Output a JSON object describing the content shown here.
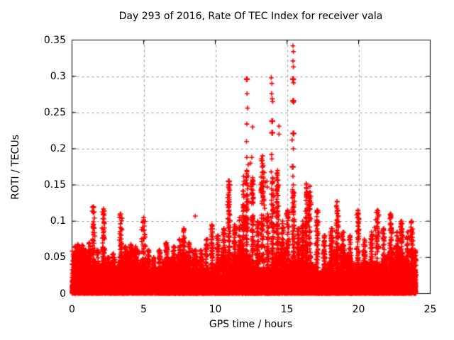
{
  "chart_data": {
    "type": "scatter",
    "title": "Day 293 of 2016, Rate Of TEC Index for receiver vala",
    "xlabel": "GPS time / hours",
    "ylabel": "ROTI / TECUs",
    "xlim": [
      0,
      25
    ],
    "ylim": [
      0,
      0.35
    ],
    "xticks": [
      0,
      5,
      10,
      15,
      20,
      25
    ],
    "yticks": [
      0,
      0.05,
      0.1,
      0.15,
      0.2,
      0.25,
      0.3,
      0.35
    ],
    "ytick_labels": [
      "0",
      "0.05",
      "0.1",
      "0.15",
      "0.2",
      "0.25",
      "0.3",
      "0.35"
    ],
    "grid": true,
    "legend": "none",
    "marker": "plus",
    "colors": {
      "points": "#ff0000",
      "grid": "#8f8f8f",
      "border": "#000000",
      "background": "#ffffff",
      "text": "#000000"
    },
    "data_extent_hours": [
      0,
      24
    ],
    "baseline_band": {
      "description": "dense band of ROTI values 0 to ~0.05 TECU across all 24 hours, saturated below ~0.02",
      "hourly_mean": [
        0.012,
        0.013,
        0.01,
        0.011,
        0.012,
        0.011,
        0.01,
        0.012,
        0.011,
        0.01,
        0.012,
        0.013,
        0.013,
        0.013,
        0.012,
        0.012,
        0.012,
        0.011,
        0.011,
        0.011,
        0.012,
        0.013,
        0.012,
        0.013
      ]
    },
    "spikes": [
      [
        0.15,
        0.055
      ],
      [
        0.4,
        0.068
      ],
      [
        0.7,
        0.067
      ],
      [
        0.95,
        0.06
      ],
      [
        1.2,
        0.07
      ],
      [
        1.5,
        0.12
      ],
      [
        1.8,
        0.06
      ],
      [
        2.2,
        0.117
      ],
      [
        2.55,
        0.05
      ],
      [
        2.9,
        0.055
      ],
      [
        3.4,
        0.11
      ],
      [
        3.75,
        0.065
      ],
      [
        4.1,
        0.068
      ],
      [
        4.45,
        0.065
      ],
      [
        5.0,
        0.105,
        0.18
      ],
      [
        5.35,
        0.06
      ],
      [
        5.7,
        0.05
      ],
      [
        6.1,
        0.06
      ],
      [
        6.6,
        0.07
      ],
      [
        7.1,
        0.065
      ],
      [
        7.5,
        0.075
      ],
      [
        7.8,
        0.09
      ],
      [
        8.15,
        0.07
      ],
      [
        8.6,
        0.06
      ],
      [
        9.0,
        0.06
      ],
      [
        9.4,
        0.075
      ],
      [
        9.75,
        0.095
      ],
      [
        10.2,
        0.08
      ],
      [
        10.6,
        0.09
      ],
      [
        10.95,
        0.145,
        0.12
      ],
      [
        11.35,
        0.095
      ],
      [
        11.7,
        0.105
      ],
      [
        11.95,
        0.15
      ],
      [
        12.2,
        0.17,
        0.1
      ],
      [
        12.6,
        0.16
      ],
      [
        12.95,
        0.1
      ],
      [
        13.3,
        0.19,
        0.2
      ],
      [
        13.65,
        0.11
      ],
      [
        14.0,
        0.16,
        0.12
      ],
      [
        14.35,
        0.17
      ],
      [
        14.7,
        0.1
      ],
      [
        15.05,
        0.115
      ],
      [
        15.45,
        0.15,
        0.1
      ],
      [
        15.8,
        0.09
      ],
      [
        16.1,
        0.1
      ],
      [
        16.35,
        0.15
      ],
      [
        16.6,
        0.14
      ],
      [
        17.1,
        0.115
      ],
      [
        17.6,
        0.08
      ],
      [
        18.1,
        0.09
      ],
      [
        18.5,
        0.127
      ],
      [
        18.9,
        0.085
      ],
      [
        19.4,
        0.08
      ],
      [
        19.95,
        0.115
      ],
      [
        20.4,
        0.075
      ],
      [
        20.9,
        0.085
      ],
      [
        21.3,
        0.115,
        0.2
      ],
      [
        21.75,
        0.09
      ],
      [
        22.25,
        0.11
      ],
      [
        22.7,
        0.085
      ],
      [
        23.0,
        0.1
      ],
      [
        23.4,
        0.085
      ],
      [
        23.7,
        0.1
      ],
      [
        23.95,
        0.06
      ]
    ],
    "outliers": [
      [
        8.6,
        0.107
      ],
      [
        10.92,
        0.147
      ],
      [
        10.95,
        0.155,
        1
      ],
      [
        10.98,
        0.15,
        1
      ],
      [
        11.0,
        0.143
      ],
      [
        11.97,
        0.162
      ],
      [
        12.0,
        0.155
      ],
      [
        12.2,
        0.296,
        1
      ],
      [
        12.22,
        0.276
      ],
      [
        12.25,
        0.256
      ],
      [
        12.2,
        0.234
      ],
      [
        12.18,
        0.21
      ],
      [
        12.2,
        0.188
      ],
      [
        12.3,
        0.178
      ],
      [
        12.45,
        0.18
      ],
      [
        12.6,
        0.23
      ],
      [
        12.55,
        0.188
      ],
      [
        13.28,
        0.184
      ],
      [
        13.3,
        0.175
      ],
      [
        13.33,
        0.168
      ],
      [
        13.25,
        0.152
      ],
      [
        13.6,
        0.155
      ],
      [
        13.62,
        0.147
      ],
      [
        13.9,
        0.298
      ],
      [
        13.95,
        0.29
      ],
      [
        13.93,
        0.276
      ],
      [
        13.97,
        0.269
      ],
      [
        14.0,
        0.265
      ],
      [
        13.97,
        0.238,
        1
      ],
      [
        13.97,
        0.222,
        1
      ],
      [
        13.93,
        0.192
      ],
      [
        13.95,
        0.186
      ],
      [
        13.9,
        0.168
      ],
      [
        14.45,
        0.231
      ],
      [
        14.45,
        0.22
      ],
      [
        15.42,
        0.342
      ],
      [
        15.45,
        0.334
      ],
      [
        15.42,
        0.321
      ],
      [
        15.45,
        0.313
      ],
      [
        15.43,
        0.296,
        1
      ],
      [
        15.46,
        0.291
      ],
      [
        15.44,
        0.266,
        1
      ],
      [
        15.46,
        0.264
      ],
      [
        15.45,
        0.221,
        1
      ],
      [
        15.36,
        0.212
      ],
      [
        15.45,
        0.2
      ],
      [
        15.4,
        0.175,
        1
      ],
      [
        15.42,
        0.162
      ],
      [
        16.35,
        0.152
      ],
      [
        16.37,
        0.145
      ],
      [
        16.6,
        0.148
      ],
      [
        16.62,
        0.14
      ],
      [
        18.5,
        0.127
      ]
    ],
    "synthesis": {
      "seed": 293,
      "base_points": 15000,
      "fuzz_points": 1200
    }
  }
}
